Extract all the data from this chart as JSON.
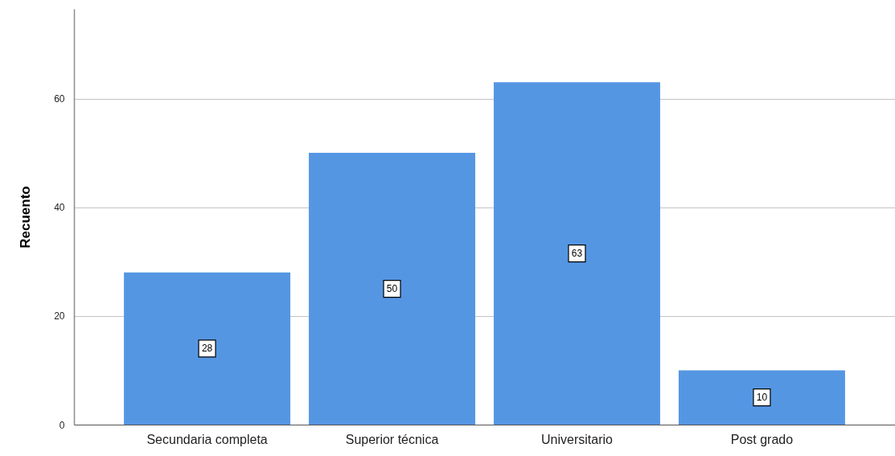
{
  "chart_data": {
    "type": "bar",
    "ylabel": "Recuento",
    "categories": [
      "Secundaria completa",
      "Superior técnica",
      "Universitario",
      "Post grado"
    ],
    "values": [
      28,
      50,
      63,
      10
    ],
    "color": "#5596e3",
    "ylim": [
      0,
      76.5
    ],
    "yticks": [
      0,
      20,
      40,
      60
    ],
    "grid": "y",
    "data_labels": true
  }
}
